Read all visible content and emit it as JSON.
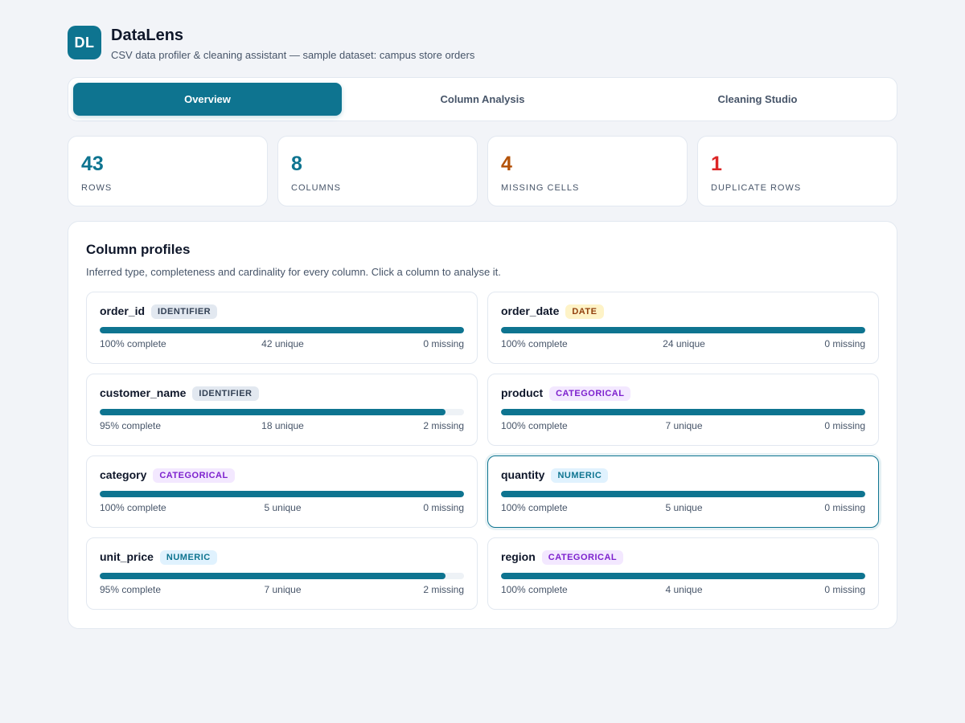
{
  "app": {
    "logo_text": "DL",
    "title": "DataLens",
    "subtitle": "CSV data profiler & cleaning assistant — sample dataset: campus store orders"
  },
  "tabs": [
    {
      "label": "Overview",
      "active": true
    },
    {
      "label": "Column Analysis",
      "active": false
    },
    {
      "label": "Cleaning Studio",
      "active": false
    }
  ],
  "stats": [
    {
      "value": "43",
      "label": "ROWS",
      "color": "#0e7490"
    },
    {
      "value": "8",
      "label": "COLUMNS",
      "color": "#0e7490"
    },
    {
      "value": "4",
      "label": "MISSING CELLS",
      "color": "#b45309"
    },
    {
      "value": "1",
      "label": "DUPLICATE ROWS",
      "color": "#dc2626"
    }
  ],
  "profiles": {
    "title": "Column profiles",
    "description": "Inferred type, completeness and cardinality for every column. Click a column to analyse it.",
    "columns": [
      {
        "name": "order_id",
        "type": "IDENTIFIER",
        "type_class": "identifier",
        "complete_fraction": 1.0,
        "complete_text": "100% complete",
        "unique_text": "42 unique",
        "missing_text": "0 missing",
        "selected": false
      },
      {
        "name": "order_date",
        "type": "DATE",
        "type_class": "date",
        "complete_fraction": 1.0,
        "complete_text": "100% complete",
        "unique_text": "24 unique",
        "missing_text": "0 missing",
        "selected": false
      },
      {
        "name": "customer_name",
        "type": "IDENTIFIER",
        "type_class": "identifier",
        "complete_fraction": 0.95,
        "complete_text": "95% complete",
        "unique_text": "18 unique",
        "missing_text": "2 missing",
        "selected": false
      },
      {
        "name": "product",
        "type": "CATEGORICAL",
        "type_class": "categorical",
        "complete_fraction": 1.0,
        "complete_text": "100% complete",
        "unique_text": "7 unique",
        "missing_text": "0 missing",
        "selected": false
      },
      {
        "name": "category",
        "type": "CATEGORICAL",
        "type_class": "categorical",
        "complete_fraction": 1.0,
        "complete_text": "100% complete",
        "unique_text": "5 unique",
        "missing_text": "0 missing",
        "selected": false
      },
      {
        "name": "quantity",
        "type": "NUMERIC",
        "type_class": "numeric",
        "complete_fraction": 1.0,
        "complete_text": "100% complete",
        "unique_text": "5 unique",
        "missing_text": "0 missing",
        "selected": true
      },
      {
        "name": "unit_price",
        "type": "NUMERIC",
        "type_class": "numeric",
        "complete_fraction": 0.95,
        "complete_text": "95% complete",
        "unique_text": "7 unique",
        "missing_text": "2 missing",
        "selected": false
      },
      {
        "name": "region",
        "type": "CATEGORICAL",
        "type_class": "categorical",
        "complete_fraction": 1.0,
        "complete_text": "100% complete",
        "unique_text": "4 unique",
        "missing_text": "0 missing",
        "selected": false
      }
    ]
  }
}
